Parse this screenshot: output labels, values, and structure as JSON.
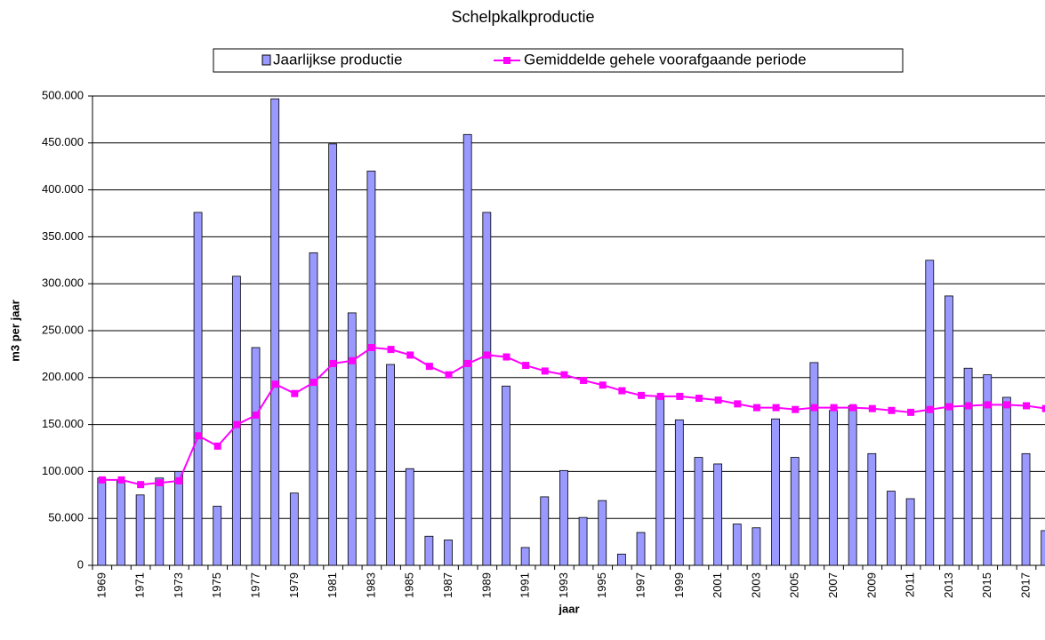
{
  "chart_data": {
    "type": "bar-line",
    "title": "Schelpkalkproductie",
    "y_label": "m3 per jaar",
    "x_label": "jaar",
    "categories": [
      "1969",
      null,
      "1971",
      null,
      "1973",
      null,
      "1975",
      null,
      "1977",
      null,
      "1979",
      null,
      "1981",
      null,
      "1983",
      null,
      "1985",
      null,
      "1987",
      null,
      "1989",
      null,
      "1991",
      null,
      "1993",
      null,
      "1995",
      null,
      "1997",
      null,
      "1999",
      null,
      "2001",
      null,
      "2003",
      null,
      "2005",
      null,
      "2007",
      null,
      "2009",
      null,
      "2011",
      null,
      "2013",
      null,
      "2015",
      null,
      "2017",
      null
    ],
    "series": [
      {
        "name": "Jaarlijkse productie",
        "kind": "bar",
        "color": "#9999ff",
        "values": [
          93000,
          90000,
          75000,
          93000,
          100000,
          376000,
          63000,
          308000,
          232000,
          497000,
          77000,
          333000,
          449000,
          269000,
          420000,
          214000,
          103000,
          31000,
          27000,
          459000,
          376000,
          191000,
          19000,
          73000,
          101000,
          51000,
          69000,
          12000,
          35000,
          180000,
          155000,
          115000,
          108000,
          44000,
          40000,
          156000,
          115000,
          216000,
          165000,
          170000,
          119000,
          79000,
          71000,
          325000,
          287000,
          210000,
          203000,
          179000,
          119000,
          37000
        ]
      },
      {
        "name": "Gemiddelde gehele voorafgaande periode",
        "kind": "line",
        "color": "#ff00ff",
        "values": [
          91000,
          91000,
          86000,
          88000,
          90000,
          138000,
          127000,
          150000,
          160000,
          193000,
          183000,
          195000,
          215000,
          218000,
          232000,
          230000,
          224000,
          212000,
          203000,
          215000,
          224000,
          222000,
          213000,
          207000,
          203000,
          197000,
          192000,
          186000,
          181000,
          180000,
          180000,
          178000,
          176000,
          172000,
          168000,
          168000,
          166000,
          168000,
          168000,
          168000,
          167000,
          165000,
          163000,
          166000,
          169000,
          170000,
          171000,
          171000,
          170000,
          167000
        ]
      }
    ],
    "ylim": [
      0,
      500000
    ],
    "yticks": [
      0,
      {
        "value": 50000,
        "label": "50.000"
      },
      {
        "value": 100000,
        "label": "100.000"
      },
      {
        "value": 150000,
        "label": "150.000"
      },
      {
        "value": 200000,
        "label": "200.000"
      },
      {
        "value": 250000,
        "label": "250.000"
      },
      {
        "value": 300000,
        "label": "300.000"
      },
      {
        "value": 350000,
        "label": "350.000"
      },
      {
        "value": 400000,
        "label": "400.000"
      },
      {
        "value": 450000,
        "label": "450.000"
      },
      {
        "value": 500000,
        "label": "500.000"
      }
    ],
    "grid": true,
    "legend": "top"
  }
}
